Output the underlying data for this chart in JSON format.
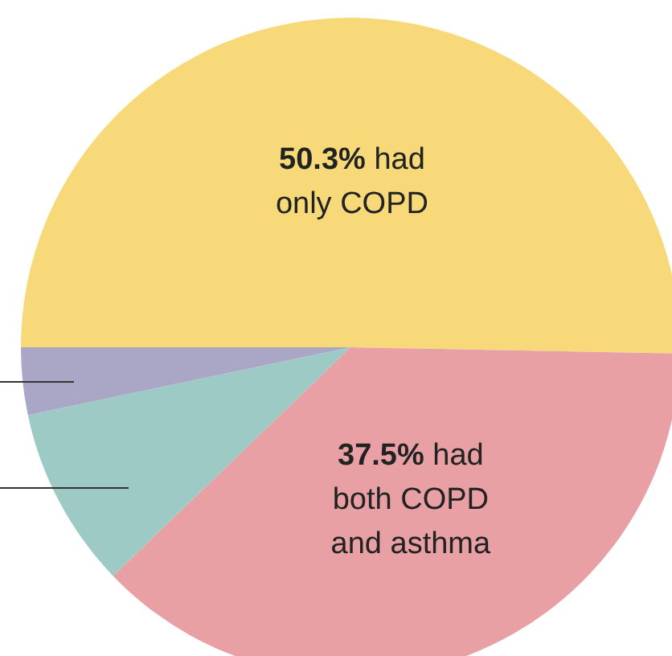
{
  "chart_data": {
    "type": "pie",
    "categories": [
      "had only COPD",
      "had both COPD and asthma",
      null,
      null
    ],
    "values": [
      50.3,
      37.5,
      8.9,
      3.3
    ],
    "value_labels": [
      "50.3%",
      "37.5%",
      null,
      null
    ],
    "colors": [
      "#f7d97a",
      "#e8a0a4",
      "#9ecac6",
      "#a9a6c6"
    ],
    "legend": false
  }
}
